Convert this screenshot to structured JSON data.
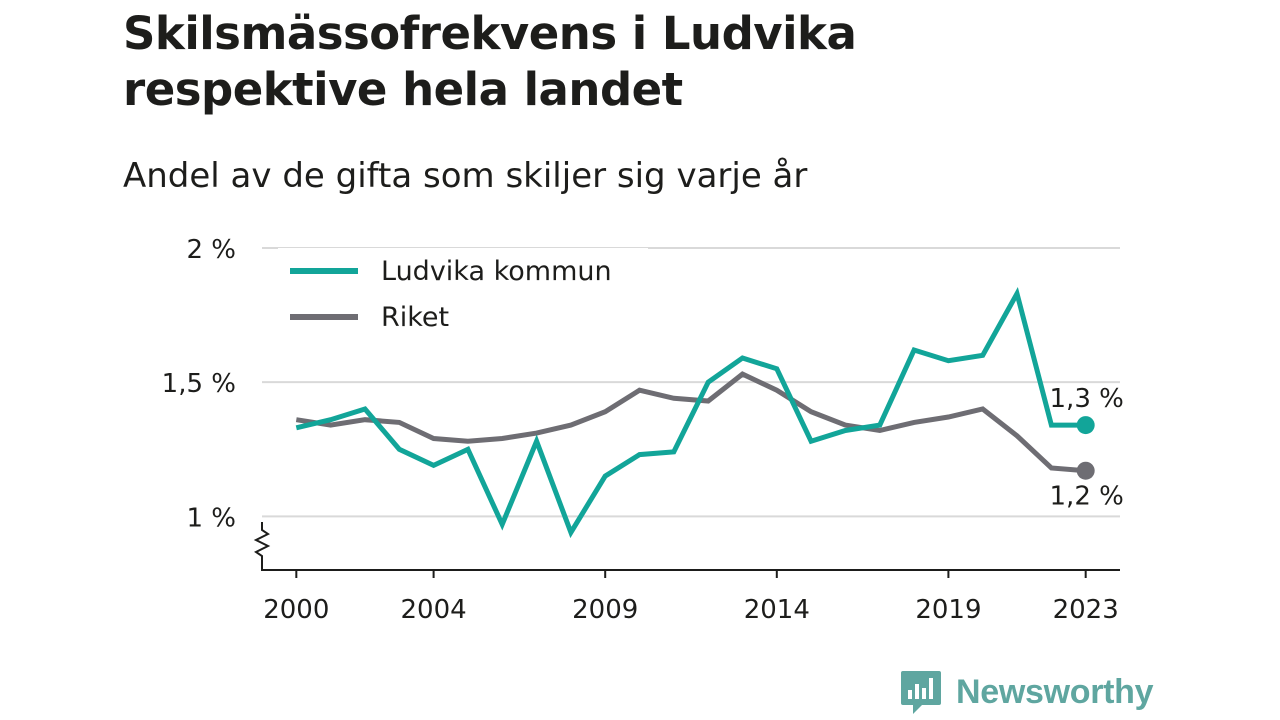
{
  "header": {
    "title": "Skilsmässofrekvens i Ludvika respektive hela landet",
    "subtitle": "Andel av de gifta som skiljer sig varje år"
  },
  "brand": {
    "name": "Newsworthy",
    "icon": "newsworthy-logo-icon",
    "color": "#5fa6a0"
  },
  "colors": {
    "ludvika": "#12a599",
    "riket": "#6e6d73",
    "grid": "#d9d9d9",
    "axis": "#1d1d1b"
  },
  "chart_data": {
    "type": "line",
    "title": "Skilsmässofrekvens i Ludvika respektive hela landet",
    "subtitle": "Andel av de gifta som skiljer sig varje år",
    "xlabel": "",
    "ylabel": "",
    "x": [
      2000,
      2001,
      2002,
      2003,
      2004,
      2005,
      2006,
      2007,
      2008,
      2009,
      2010,
      2011,
      2012,
      2013,
      2014,
      2015,
      2016,
      2017,
      2018,
      2019,
      2020,
      2021,
      2022,
      2023
    ],
    "x_ticks": [
      2000,
      2004,
      2009,
      2014,
      2019,
      2023
    ],
    "x_tick_labels": [
      "2000",
      "2004",
      "2009",
      "2014",
      "2019",
      "2023"
    ],
    "xlim": [
      1999,
      2024
    ],
    "ylim": [
      0.8,
      2.0
    ],
    "y_ticks": [
      1.0,
      1.5,
      2.0
    ],
    "y_tick_labels": [
      "1 %",
      "1,5 %",
      "2 %"
    ],
    "y_axis_break": true,
    "grid": "horizontal",
    "legend_position": "top-left",
    "series": [
      {
        "name": "Ludvika kommun",
        "color": "#12a599",
        "values": [
          1.33,
          1.36,
          1.4,
          1.25,
          1.19,
          1.25,
          0.97,
          1.28,
          0.94,
          1.15,
          1.23,
          1.24,
          1.5,
          1.59,
          1.55,
          1.28,
          1.32,
          1.34,
          1.62,
          1.58,
          1.6,
          1.83,
          1.34,
          1.34
        ],
        "end_label": "1,3 %"
      },
      {
        "name": "Riket",
        "color": "#6e6d73",
        "values": [
          1.36,
          1.34,
          1.36,
          1.35,
          1.29,
          1.28,
          1.29,
          1.31,
          1.34,
          1.39,
          1.47,
          1.44,
          1.43,
          1.53,
          1.47,
          1.39,
          1.34,
          1.32,
          1.35,
          1.37,
          1.4,
          1.3,
          1.18,
          1.17
        ],
        "end_label": "1,2 %"
      }
    ]
  }
}
